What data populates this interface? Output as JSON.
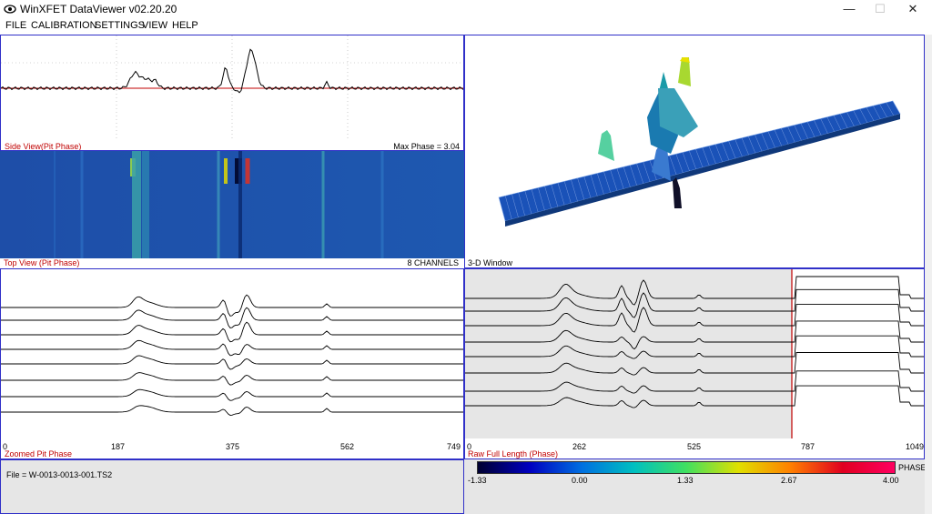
{
  "window": {
    "title": "WinXFET DataViewer v02.20.20",
    "minimize": "—",
    "maximize": "☐",
    "close": "✕"
  },
  "menu": [
    "FILE",
    "CALIBRATION",
    "SETTINGS",
    "VIEW",
    "HELP"
  ],
  "side_view": {
    "label": "Side View(Pit Phase)",
    "max_phase": "Max Phase = 3.04"
  },
  "top_view": {
    "label": "Top View (Pit Phase)",
    "channels": "8 CHANNELS"
  },
  "three_d": {
    "label": "3-D Window"
  },
  "zoomed": {
    "label": "Zoomed Pit Phase",
    "ticks": [
      "0",
      "187",
      "375",
      "562",
      "749"
    ]
  },
  "raw": {
    "label": "Raw Full Length (Phase)",
    "ticks": [
      "0",
      "262",
      "525",
      "787",
      "1049"
    ]
  },
  "file": {
    "text": "File = W-0013-0013-001.TS2"
  },
  "colorbar": {
    "label": "PHASE",
    "ticks": [
      "-1.33",
      "0.00",
      "1.33",
      "2.67",
      "4.00"
    ],
    "colors": [
      "#000030",
      "#0000c0",
      "#0070e0",
      "#00c0c0",
      "#40e060",
      "#e0e000",
      "#ff8000",
      "#e00020",
      "#ff0060"
    ]
  },
  "chart_data": [
    {
      "type": "line",
      "title": "Side View(Pit Phase)",
      "x": [
        0,
        187,
        375,
        562,
        749
      ],
      "series": []
    },
    {
      "type": "heatmap",
      "title": "Top View (Pit Phase)",
      "rows": 8
    },
    {
      "type": "line",
      "title": "Zoomed Pit Phase",
      "xlim": [
        0,
        749
      ],
      "channels": 8
    },
    {
      "type": "line",
      "title": "Raw Full Length (Phase)",
      "xlim": [
        0,
        1049
      ],
      "channels": 8
    }
  ]
}
